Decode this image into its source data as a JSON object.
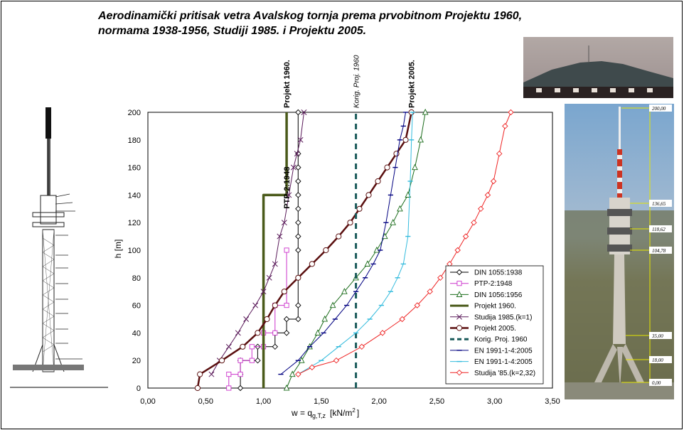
{
  "title": {
    "line1": "Aerodinamički pritisak vetra Avalskog tornja prema prvobitnom Projektu 1960,",
    "line2": "normama 1938-1956, Studiji 1985. i Projektu 2005."
  },
  "photo_dimensions": [
    "200,00",
    "136,65",
    "118,62",
    "104,78",
    "35,00",
    "18,00",
    "0,00"
  ],
  "chart_data": {
    "type": "line",
    "xlabel": "w = q_{g,T,z}  [kN/m²]",
    "xlabel_main": "w = q",
    "xlabel_sub": "g,T,z",
    "xlabel_unit": "[kN/m",
    "xlabel_sup": "2",
    "xlabel_end": "]",
    "ylabel": "h  [m]",
    "xlim": [
      0,
      3.5
    ],
    "ylim": [
      0,
      200
    ],
    "x_ticks": [
      "0,00",
      "0,50",
      "1,00",
      "1,50",
      "2,00",
      "2,50",
      "3,00",
      "3,50"
    ],
    "y_ticks": [
      "0",
      "20",
      "40",
      "60",
      "80",
      "100",
      "120",
      "140",
      "160",
      "180",
      "200"
    ],
    "grid": true,
    "legend_position": "bottom-right",
    "annotations": [
      "Projekt 1960.",
      "Korig. Proj. 1960",
      "Projekt 2005.",
      "PTP-2:1948"
    ],
    "series": [
      {
        "name": "DIN 1055:1938",
        "color": "#000000",
        "marker": "diamond",
        "width": 1,
        "x": [
          0.8,
          0.8,
          0.8,
          0.95,
          0.95,
          1.1,
          1.1,
          1.2,
          1.2,
          1.3,
          1.3,
          1.3,
          1.3,
          1.3,
          1.3,
          1.3,
          1.3,
          1.3,
          1.3,
          1.3,
          1.3
        ],
        "y": [
          0,
          10,
          20,
          20,
          30,
          30,
          40,
          40,
          50,
          50,
          60,
          80,
          100,
          110,
          120,
          130,
          140,
          150,
          160,
          170,
          200
        ]
      },
      {
        "name": "PTP-2:1948",
        "color": "#cc33cc",
        "marker": "square",
        "width": 1,
        "x": [
          0.7,
          0.7,
          0.8,
          0.8,
          0.9,
          0.9,
          1.0,
          1.0,
          1.1,
          1.1,
          1.2,
          1.2
        ],
        "y": [
          0,
          10,
          10,
          20,
          20,
          30,
          30,
          40,
          40,
          60,
          60,
          100
        ]
      },
      {
        "name": "DIN 1056:1956",
        "color": "#1a6b1a",
        "marker": "triangle",
        "width": 1,
        "x": [
          1.2,
          1.25,
          1.33,
          1.4,
          1.47,
          1.53,
          1.6,
          1.7,
          1.8,
          1.9,
          1.98,
          2.05,
          2.12,
          2.18,
          2.25,
          2.31,
          2.36,
          2.4
        ],
        "y": [
          0,
          10,
          20,
          30,
          40,
          50,
          60,
          70,
          80,
          90,
          100,
          110,
          120,
          130,
          140,
          160,
          180,
          200
        ]
      },
      {
        "name": "Projekt 1960.",
        "color": "#4a5a1a",
        "marker": "none",
        "width": 3.5,
        "x": [
          1.0,
          1.0,
          1.2,
          1.2
        ],
        "y": [
          0,
          140,
          140,
          200
        ]
      },
      {
        "name": "Studija 1985.(k=1)",
        "color": "#5a1a5a",
        "marker": "x",
        "width": 1,
        "x": [
          0.55,
          0.62,
          0.7,
          0.78,
          0.85,
          0.93,
          1.0,
          1.05,
          1.1,
          1.14,
          1.18,
          1.22,
          1.26,
          1.29,
          1.32,
          1.35
        ],
        "y": [
          10,
          20,
          30,
          40,
          50,
          60,
          70,
          80,
          90,
          110,
          120,
          140,
          160,
          170,
          180,
          200
        ]
      },
      {
        "name": "Projekt 2005.",
        "color": "#5a0f0f",
        "marker": "circle",
        "width": 2.5,
        "x": [
          0.43,
          0.45,
          0.64,
          0.82,
          0.95,
          1.03,
          1.1,
          1.18,
          1.3,
          1.42,
          1.54,
          1.65,
          1.75,
          1.83,
          1.91,
          1.99,
          2.07,
          2.15,
          2.23,
          2.28
        ],
        "y": [
          0,
          10,
          20,
          30,
          40,
          50,
          60,
          70,
          80,
          90,
          100,
          110,
          120,
          130,
          140,
          150,
          160,
          170,
          180,
          200
        ]
      },
      {
        "name": "Korig. Proj. 1960",
        "color": "#1a5a5a",
        "marker": "none",
        "width": 3,
        "dash": "8,6",
        "x": [
          1.8,
          1.8
        ],
        "y": [
          0,
          200
        ]
      },
      {
        "name": "EN 1991-1-4:2005",
        "color": "#000080",
        "marker": "dash",
        "width": 1,
        "x": [
          1.15,
          1.3,
          1.4,
          1.52,
          1.62,
          1.72,
          1.8,
          1.88,
          1.95,
          2.01,
          2.06,
          2.1,
          2.14,
          2.18,
          2.21,
          2.23
        ],
        "y": [
          10,
          20,
          30,
          40,
          50,
          60,
          70,
          80,
          90,
          100,
          120,
          140,
          160,
          180,
          190,
          200
        ]
      },
      {
        "name": "EN 1991-1-4:2005",
        "color": "#33bbdd",
        "marker": "dash",
        "width": 1,
        "x": [
          1.3,
          1.5,
          1.65,
          1.8,
          1.92,
          2.02,
          2.1,
          2.16,
          2.21,
          2.25,
          2.27,
          2.28,
          2.29
        ],
        "y": [
          10,
          20,
          30,
          40,
          50,
          60,
          70,
          80,
          90,
          110,
          150,
          180,
          200
        ]
      },
      {
        "name": "Studija '85.(k=2,32)",
        "color": "#ee2222",
        "marker": "diamond-open",
        "width": 1,
        "x": [
          1.3,
          1.42,
          1.63,
          1.85,
          2.03,
          2.2,
          2.33,
          2.44,
          2.53,
          2.61,
          2.68,
          2.75,
          2.82,
          2.88,
          2.94,
          2.99,
          3.04,
          3.09,
          3.14
        ],
        "y": [
          10,
          15,
          20,
          30,
          40,
          50,
          60,
          70,
          80,
          90,
          100,
          110,
          120,
          130,
          140,
          150,
          170,
          190,
          200
        ]
      }
    ]
  }
}
